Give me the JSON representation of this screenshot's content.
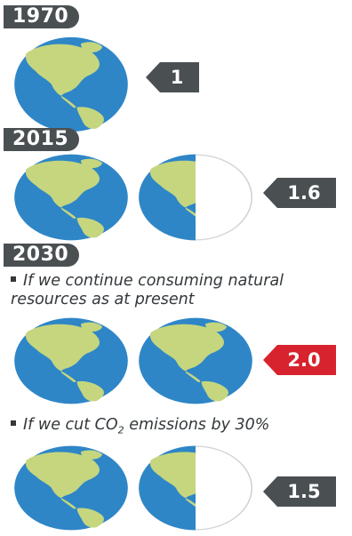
{
  "sections": {
    "y1970": {
      "year": "1970",
      "earths": "1"
    },
    "y2015": {
      "year": "2015",
      "earths": "1.6"
    },
    "y2030": {
      "year": "2030",
      "scenario_a": {
        "text": "If we continue consuming natural resources as at present",
        "earths": "2.0"
      },
      "scenario_b": {
        "text_prefix": "If we cut CO",
        "text_sub": "2",
        "text_suffix": " emissions by 30%",
        "earths": "1.5"
      }
    }
  },
  "colors": {
    "ocean": "#2e86c7",
    "land": "#c5d67e",
    "tag_dark": "#4a4f52",
    "tag_red": "#d7232d"
  }
}
